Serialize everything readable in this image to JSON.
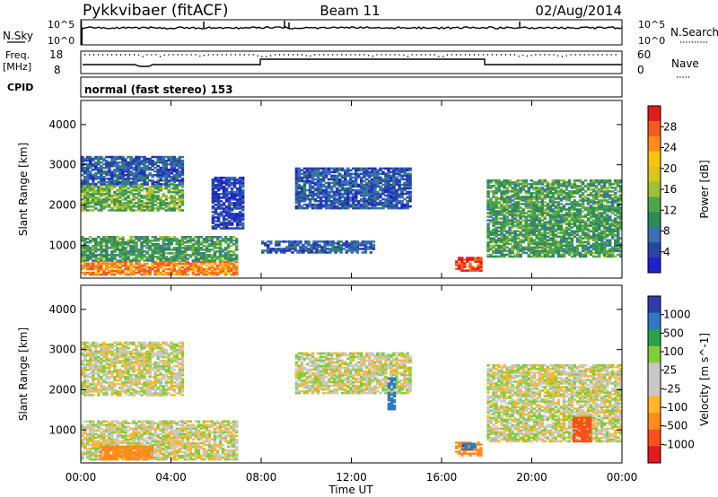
{
  "header": {
    "title": "Pykkvibaer (fitACF)",
    "beam": "Beam 11",
    "date": "02/Aug/2014"
  },
  "top_panels": {
    "nsky_label": "N.Sky",
    "nsky_ticks": [
      "10^5",
      "10^0"
    ],
    "nsearch_label": "N.Search",
    "nsearch_ticks": [
      "10^5",
      "10^0"
    ],
    "freq_label_1": "Freq.",
    "freq_label_2": "[MHz]",
    "freq_ticks": [
      "18",
      "8"
    ],
    "nave_label": "Nave",
    "nave_ticks": [
      "60",
      "0"
    ],
    "cpid_label": "CPID",
    "cpid_text": "normal (fast stereo) 153"
  },
  "colorbars": {
    "power": {
      "label": "Power [dB]",
      "ticks": [
        "28",
        "24",
        "20",
        "16",
        "12",
        "8",
        "4"
      ],
      "colors": [
        "#e41a1c",
        "#f25c1f",
        "#ff8c1a",
        "#ffc20e",
        "#d9c61a",
        "#9fbf35",
        "#4ea649",
        "#2e8b57",
        "#3b6fb6",
        "#2845a6",
        "#1f1fd0"
      ]
    },
    "velocity": {
      "label": "Velocity [m s^-1]",
      "ticks": [
        "1000",
        "500",
        "100",
        "25",
        "-25",
        "-100",
        "-500",
        "-1000"
      ],
      "colors": [
        "#2e3ea7",
        "#2f79c2",
        "#2aa24a",
        "#7fce3a",
        "#c8c8c8",
        "#c8c8c8",
        "#ffb627",
        "#ff8c1a",
        "#ff4f1a",
        "#e41a1c"
      ]
    }
  },
  "chart_data": [
    {
      "type": "heatmap",
      "title": "Power [dB]",
      "xlabel": "Time UT",
      "ylabel": "Slant Range [km]",
      "x_ticks": [
        "00:00",
        "04:00",
        "08:00",
        "12:00",
        "16:00",
        "20:00",
        "00:00"
      ],
      "y_ticks": [
        "1000",
        "2000",
        "3000",
        "4000"
      ],
      "x_range_hours": [
        0,
        24
      ],
      "y_range_km": [
        180,
        4600
      ],
      "regions": [
        {
          "t0": 0.0,
          "t1": 6.9,
          "r0": 250,
          "r1": 600,
          "power_db": 26
        },
        {
          "t0": 0.0,
          "t1": 6.9,
          "r0": 600,
          "r1": 1200,
          "power_db": 14
        },
        {
          "t0": 0.0,
          "t1": 4.5,
          "r0": 1850,
          "r1": 2500,
          "power_db": 16
        },
        {
          "t0": 0.0,
          "t1": 4.5,
          "r0": 2500,
          "r1": 3200,
          "power_db": 8
        },
        {
          "t0": 5.8,
          "t1": 7.2,
          "r0": 1400,
          "r1": 2700,
          "power_db": 6
        },
        {
          "t0": 8.0,
          "t1": 13.0,
          "r0": 800,
          "r1": 1100,
          "power_db": 8
        },
        {
          "t0": 9.5,
          "t1": 14.6,
          "r0": 1900,
          "r1": 2900,
          "power_db": 8
        },
        {
          "t0": 16.6,
          "t1": 17.8,
          "r0": 350,
          "r1": 700,
          "power_db": 30
        },
        {
          "t0": 18.0,
          "t1": 24.0,
          "r0": 700,
          "r1": 2600,
          "power_db": 14
        }
      ]
    },
    {
      "type": "heatmap",
      "title": "Velocity [m s^-1]",
      "xlabel": "Time UT",
      "ylabel": "Slant Range [km]",
      "x_ticks": [
        "00:00",
        "04:00",
        "08:00",
        "12:00",
        "16:00",
        "20:00",
        "00:00"
      ],
      "y_ticks": [
        "1000",
        "2000",
        "3000",
        "4000"
      ],
      "x_range_hours": [
        0,
        24
      ],
      "y_range_km": [
        180,
        4600
      ],
      "regions": [
        {
          "t0": 0.0,
          "t1": 6.9,
          "r0": 250,
          "r1": 1200,
          "velocity": 0
        },
        {
          "t0": 0.8,
          "t1": 3.2,
          "r0": 250,
          "r1": 600,
          "velocity": -150
        },
        {
          "t0": 0.0,
          "t1": 4.5,
          "r0": 1850,
          "r1": 3200,
          "velocity": 0
        },
        {
          "t0": 9.5,
          "t1": 14.6,
          "r0": 1900,
          "r1": 2900,
          "velocity": 0
        },
        {
          "t0": 13.6,
          "t1": 13.9,
          "r0": 1500,
          "r1": 2300,
          "velocity": 700
        },
        {
          "t0": 16.6,
          "t1": 17.8,
          "r0": 350,
          "r1": 700,
          "velocity": -150
        },
        {
          "t0": 16.9,
          "t1": 17.4,
          "r0": 500,
          "r1": 650,
          "velocity": 700
        },
        {
          "t0": 18.0,
          "t1": 24.0,
          "r0": 700,
          "r1": 2600,
          "velocity": 0
        },
        {
          "t0": 21.8,
          "t1": 22.6,
          "r0": 700,
          "r1": 1300,
          "velocity": -600
        }
      ]
    }
  ]
}
